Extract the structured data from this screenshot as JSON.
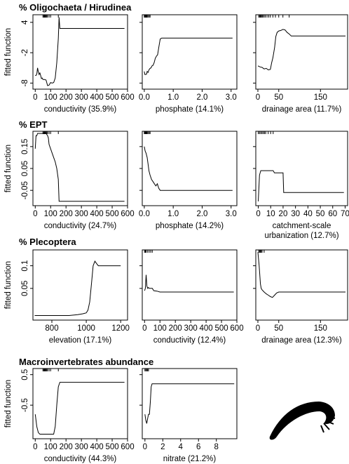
{
  "sections": [
    {
      "title": "% Oligochaeta / Hirudinea"
    },
    {
      "title": "% EPT"
    },
    {
      "title": "% Plecoptera"
    },
    {
      "title": "Macroinvertebrates abundance"
    }
  ],
  "ylabel": "fitted function",
  "image": {
    "icon": "macroinvertebrate-silhouette-icon"
  },
  "chart_data": [
    {
      "type": "line",
      "section": 0,
      "xlabel": [
        "conductivity (35.9%)"
      ],
      "xlim": [
        -15,
        600
      ],
      "ylim": [
        -9.2,
        5.5
      ],
      "xticks": [
        0,
        100,
        200,
        300,
        400,
        500,
        600
      ],
      "yticks": [
        -8,
        -2,
        4
      ],
      "rug": [
        50,
        55,
        60,
        65,
        70,
        75,
        80,
        90,
        100,
        150
      ],
      "x": [
        0,
        5,
        10,
        15,
        20,
        25,
        30,
        35,
        40,
        45,
        50,
        60,
        70,
        80,
        90,
        100,
        110,
        120,
        130,
        140,
        150,
        155,
        160,
        170,
        580
      ],
      "y": [
        -6.5,
        -6.5,
        -6.2,
        -5.0,
        -5.8,
        -6.3,
        -6.0,
        -6.5,
        -7.1,
        -7.0,
        -7.3,
        -7.3,
        -7.4,
        -8.5,
        -8.4,
        -7.9,
        -8.0,
        -7.9,
        -7.0,
        -4.0,
        0.8,
        5.0,
        2.8,
        2.8,
        2.8
      ]
    },
    {
      "type": "line",
      "section": 0,
      "xlabel": [
        "phosphate (14.1%)"
      ],
      "xlim": [
        -0.07,
        3.2
      ],
      "ylim": [
        -9.2,
        5.5
      ],
      "xticks": [
        0.0,
        1.0,
        2.0,
        3.0
      ],
      "xticklabels": [
        "0.0",
        "1.0",
        "2.0",
        "3.0"
      ],
      "yticks": [
        -8,
        -2,
        4
      ],
      "rug": [
        0.0,
        0.02,
        0.04,
        0.06,
        0.08,
        0.1,
        0.13,
        0.17,
        0.2
      ],
      "x": [
        0.0,
        0.02,
        0.05,
        0.08,
        0.1,
        0.13,
        0.16,
        0.2,
        0.23,
        0.27,
        0.3,
        0.34,
        0.38,
        0.42,
        0.46,
        0.5,
        0.55,
        0.6,
        3.05
      ],
      "y": [
        -5.7,
        -6.3,
        -6.3,
        -6.2,
        -5.7,
        -5.9,
        -5.4,
        -5.1,
        -5.0,
        -4.6,
        -4.5,
        -4.0,
        -3.1,
        -2.7,
        -2.4,
        -1.0,
        0.7,
        0.9,
        0.9
      ]
    },
    {
      "type": "line",
      "section": 0,
      "xlabel": [
        "drainage area (11.7%)"
      ],
      "xlim": [
        -5,
        215
      ],
      "ylim": [
        -9.2,
        5.5
      ],
      "xticks": [
        0,
        50,
        150
      ],
      "yticks": [
        -8,
        -2,
        4
      ],
      "rug": [
        2,
        4,
        6,
        8,
        10,
        12,
        15,
        18,
        22,
        26,
        30,
        36,
        42,
        50,
        60,
        75
      ],
      "x": [
        0,
        5,
        10,
        15,
        20,
        25,
        30,
        33,
        36,
        40,
        43,
        46,
        50,
        55,
        60,
        65,
        70,
        75,
        80,
        90,
        210
      ],
      "y": [
        -4.6,
        -4.8,
        -4.9,
        -5.2,
        -5.1,
        -5.4,
        -5.3,
        -4.0,
        -3.0,
        -1.0,
        1.2,
        2.0,
        2.3,
        2.4,
        2.6,
        2.5,
        2.0,
        1.7,
        1.3,
        1.3,
        1.3
      ]
    },
    {
      "type": "line",
      "section": 1,
      "xlabel": [
        "conductivity (24.7%)"
      ],
      "xlim": [
        -15,
        600
      ],
      "ylim": [
        -0.12,
        0.22
      ],
      "xticks": [
        0,
        100,
        200,
        300,
        400,
        500,
        600
      ],
      "yticks": [
        -0.05,
        0.05,
        0.15
      ],
      "rug": [
        50,
        55,
        60,
        65,
        70,
        75,
        80,
        90,
        100,
        150
      ],
      "x": [
        0,
        5,
        10,
        15,
        20,
        30,
        40,
        50,
        60,
        70,
        80,
        85,
        90,
        100,
        110,
        120,
        130,
        140,
        150,
        155,
        580
      ],
      "y": [
        0.14,
        0.2,
        0.2,
        0.21,
        0.21,
        0.21,
        0.21,
        0.21,
        0.21,
        0.21,
        0.2,
        0.19,
        0.16,
        0.14,
        0.12,
        0.1,
        0.08,
        0.05,
        0.0,
        -0.1,
        -0.1
      ]
    },
    {
      "type": "line",
      "section": 1,
      "xlabel": [
        "phosphate (14.2%)"
      ],
      "xlim": [
        -0.07,
        3.2
      ],
      "ylim": [
        -0.12,
        0.22
      ],
      "xticks": [
        0.0,
        1.0,
        2.0,
        3.0
      ],
      "xticklabels": [
        "0.0",
        "1.0",
        "2.0",
        "3.0"
      ],
      "yticks": [
        -0.05,
        0.05,
        0.15
      ],
      "rug": [
        0.0,
        0.02,
        0.04,
        0.06,
        0.08,
        0.1,
        0.13,
        0.17,
        0.2
      ],
      "x": [
        0.0,
        0.03,
        0.06,
        0.1,
        0.13,
        0.16,
        0.2,
        0.25,
        0.3,
        0.35,
        0.4,
        0.45,
        0.5,
        0.55,
        0.6,
        0.65,
        3.05
      ],
      "y": [
        0.15,
        0.13,
        0.12,
        0.1,
        0.07,
        0.04,
        0.02,
        0.0,
        -0.01,
        -0.02,
        -0.03,
        -0.02,
        -0.04,
        -0.05,
        -0.05,
        -0.05,
        -0.05
      ]
    },
    {
      "type": "line",
      "section": 1,
      "xlabel": [
        "catchment-scale",
        "urbanization (12.7%)"
      ],
      "xlim": [
        -2,
        72
      ],
      "ylim": [
        -0.12,
        0.22
      ],
      "xticks": [
        0,
        10,
        20,
        30,
        40,
        50,
        60,
        70
      ],
      "yticks": [
        -0.05,
        0.05,
        0.15
      ],
      "rug": [
        0,
        1,
        2,
        3,
        4,
        5,
        6,
        8,
        10,
        12
      ],
      "x": [
        0,
        1,
        2,
        3,
        4,
        5,
        6,
        8,
        10,
        11,
        12,
        13,
        14,
        15,
        18,
        20,
        20.5,
        69
      ],
      "y": [
        -0.1,
        0.02,
        0.04,
        0.04,
        0.04,
        0.04,
        0.04,
        0.04,
        0.04,
        0.04,
        0.04,
        0.03,
        0.03,
        0.03,
        0.03,
        0.03,
        -0.06,
        -0.06
      ]
    },
    {
      "type": "line",
      "section": 2,
      "xlabel": [
        "elevation (17.1%)"
      ],
      "xlim": [
        690,
        1240
      ],
      "ylim": [
        -0.02,
        0.135
      ],
      "xticks": [
        800,
        1000,
        1200
      ],
      "yticks": [
        -0.05,
        0.05,
        0.1
      ],
      "x": [
        700,
        750,
        800,
        850,
        900,
        950,
        980,
        1000,
        1010,
        1020,
        1030,
        1040,
        1050,
        1060,
        1070,
        1080,
        1200
      ],
      "y": [
        -0.01,
        -0.01,
        -0.01,
        -0.01,
        -0.01,
        -0.008,
        -0.006,
        -0.004,
        0.002,
        0.02,
        0.06,
        0.1,
        0.11,
        0.105,
        0.1,
        0.1,
        0.1
      ]
    },
    {
      "type": "line",
      "section": 2,
      "xlabel": [
        "conductivity (12.4%)"
      ],
      "xlim": [
        -15,
        600
      ],
      "ylim": [
        -0.02,
        0.135
      ],
      "xticks": [
        0,
        100,
        200,
        300,
        400,
        500,
        600
      ],
      "yticks": [
        -0.05,
        0.05,
        0.1
      ],
      "rug": [
        0,
        5,
        10,
        20,
        30,
        40,
        50
      ],
      "x": [
        0,
        5,
        10,
        15,
        20,
        25,
        30,
        40,
        50,
        60,
        80,
        100,
        580
      ],
      "y": [
        0.045,
        0.05,
        0.08,
        0.055,
        0.05,
        0.052,
        0.05,
        0.05,
        0.05,
        0.045,
        0.044,
        0.042,
        0.042
      ]
    },
    {
      "type": "line",
      "section": 2,
      "xlabel": [
        "drainage area (12.3%)"
      ],
      "xlim": [
        -5,
        215
      ],
      "ylim": [
        -0.02,
        0.135
      ],
      "xticks": [
        0,
        50,
        150
      ],
      "yticks": [
        -0.05,
        0.05,
        0.1
      ],
      "rug": [
        2,
        4,
        6,
        8,
        10,
        15
      ],
      "x": [
        0,
        3,
        6,
        8,
        10,
        15,
        20,
        25,
        30,
        35,
        40,
        45,
        50,
        60,
        210
      ],
      "y": [
        0.13,
        0.1,
        0.06,
        0.05,
        0.047,
        0.042,
        0.038,
        0.035,
        0.032,
        0.03,
        0.035,
        0.04,
        0.042,
        0.042,
        0.042
      ]
    },
    {
      "type": "line",
      "section": 3,
      "xlabel": [
        "conductivity (44.3%)"
      ],
      "xlim": [
        -15,
        600
      ],
      "ylim": [
        -1.6,
        0.7
      ],
      "xticks": [
        0,
        100,
        200,
        300,
        400,
        500,
        600
      ],
      "yticks": [
        -0.5,
        0.5
      ],
      "rug": [
        50,
        55,
        60,
        65,
        70,
        75,
        80,
        90,
        100,
        150
      ],
      "x": [
        0,
        5,
        10,
        15,
        20,
        30,
        40,
        60,
        80,
        100,
        120,
        130,
        140,
        150,
        160,
        580
      ],
      "y": [
        -0.8,
        -1.0,
        -1.2,
        -1.3,
        -1.4,
        -1.45,
        -1.45,
        -1.45,
        -1.45,
        -1.45,
        -1.45,
        -1.2,
        -0.5,
        0.1,
        0.25,
        0.25
      ]
    },
    {
      "type": "line",
      "section": 3,
      "xlabel": [
        "nitrate (21.2%)"
      ],
      "xlim": [
        -0.3,
        10.3
      ],
      "ylim": [
        -1.6,
        0.7
      ],
      "xticks": [
        0,
        2,
        4,
        6,
        8
      ],
      "yticks": [
        -0.5,
        0.5
      ],
      "rug": [
        0.0,
        0.1,
        0.2,
        0.3,
        0.4
      ],
      "x": [
        0,
        0.1,
        0.2,
        0.3,
        0.4,
        0.5,
        0.6,
        0.7,
        0.8,
        0.9,
        10
      ],
      "y": [
        -0.8,
        -1.0,
        -1.1,
        -0.95,
        -0.8,
        -0.8,
        -0.4,
        0.1,
        0.2,
        0.2,
        0.2
      ]
    }
  ]
}
